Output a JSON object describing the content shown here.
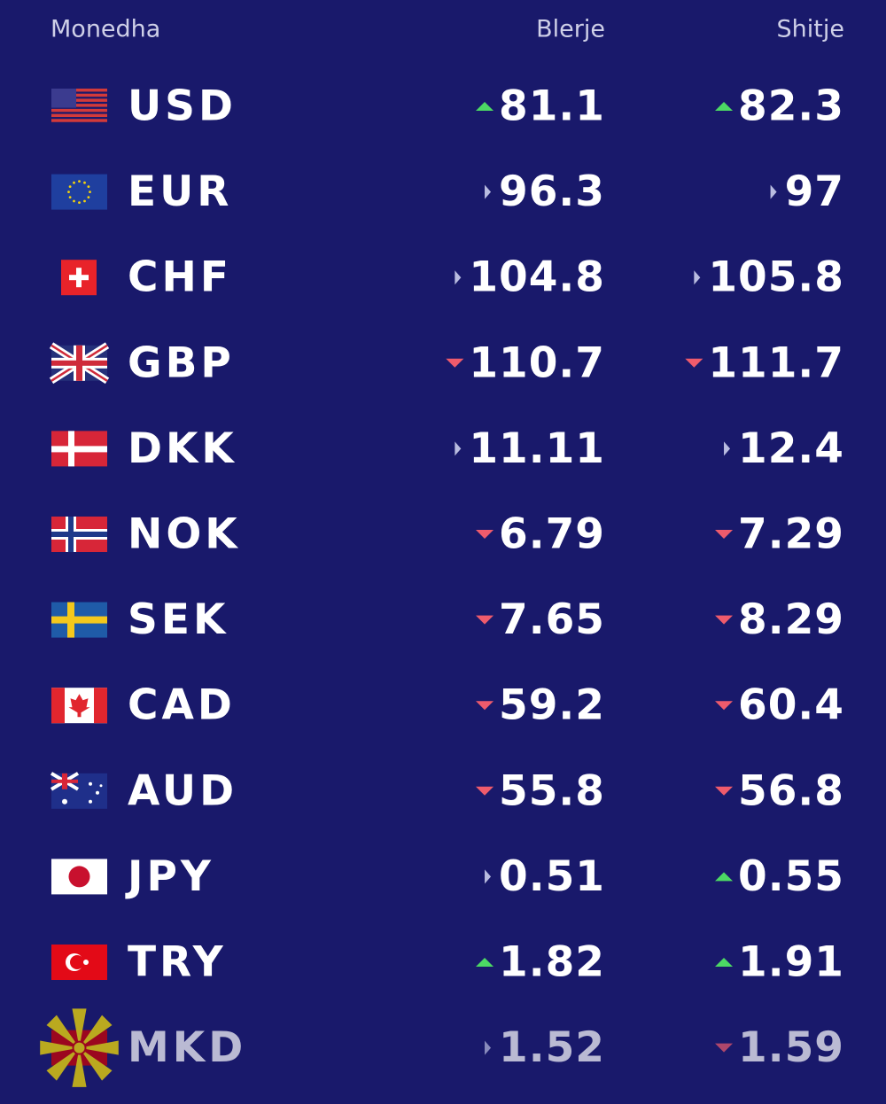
{
  "header": {
    "currency": "Monedha",
    "buy": "Blerje",
    "sell": "Shitje"
  },
  "rows": [
    {
      "code": "USD",
      "buy": "81.1",
      "buy_trend": "up",
      "sell": "82.3",
      "sell_trend": "up"
    },
    {
      "code": "EUR",
      "buy": "96.3",
      "buy_trend": "flat",
      "sell": "97",
      "sell_trend": "flat"
    },
    {
      "code": "CHF",
      "buy": "104.8",
      "buy_trend": "flat",
      "sell": "105.8",
      "sell_trend": "flat"
    },
    {
      "code": "GBP",
      "buy": "110.7",
      "buy_trend": "down",
      "sell": "111.7",
      "sell_trend": "down"
    },
    {
      "code": "DKK",
      "buy": "11.11",
      "buy_trend": "flat",
      "sell": "12.4",
      "sell_trend": "flat"
    },
    {
      "code": "NOK",
      "buy": "6.79",
      "buy_trend": "down",
      "sell": "7.29",
      "sell_trend": "down"
    },
    {
      "code": "SEK",
      "buy": "7.65",
      "buy_trend": "down",
      "sell": "8.29",
      "sell_trend": "down"
    },
    {
      "code": "CAD",
      "buy": "59.2",
      "buy_trend": "down",
      "sell": "60.4",
      "sell_trend": "down"
    },
    {
      "code": "AUD",
      "buy": "55.8",
      "buy_trend": "down",
      "sell": "56.8",
      "sell_trend": "down"
    },
    {
      "code": "JPY",
      "buy": "0.51",
      "buy_trend": "flat",
      "sell": "0.55",
      "sell_trend": "up"
    },
    {
      "code": "TRY",
      "buy": "1.82",
      "buy_trend": "up",
      "sell": "1.91",
      "sell_trend": "up"
    },
    {
      "code": "MKD",
      "buy": "1.52",
      "buy_trend": "flat",
      "sell": "1.59",
      "sell_trend": "down",
      "muted": true
    }
  ]
}
